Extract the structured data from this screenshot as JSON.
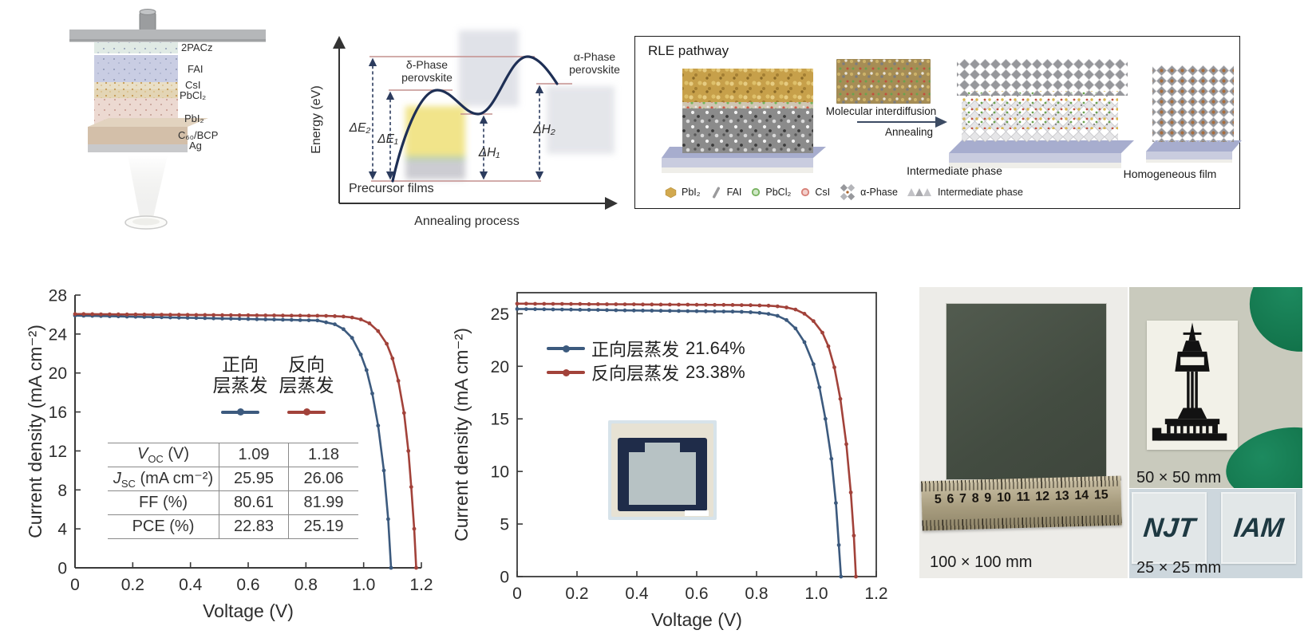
{
  "figure": {
    "background": "#ffffff"
  },
  "device": {
    "labels": [
      "2PACz",
      "FAI",
      "CsI",
      "PbCl₂",
      "PbI₂",
      "C₆₀/BCP",
      "Ag"
    ]
  },
  "energy": {
    "ylabel": "Energy (eV)",
    "xlabel": "Annealing process",
    "precursor": "Precursor films",
    "delta_phase_line1": "δ-Phase",
    "delta_phase_line2": "perovskite",
    "alpha_phase_line1": "α-Phase",
    "alpha_phase_line2": "perovskite",
    "dE2": "ΔE₂",
    "dE1": "ΔE₁",
    "dH1": "ΔH₁",
    "dH2": "ΔH₂"
  },
  "rle": {
    "title": "RLE pathway",
    "arrow_top": "Molecular interdiffusion",
    "arrow_bottom": "Annealing",
    "caption_intermediate": "Intermediate phase",
    "caption_homogeneous": "Homogeneous film",
    "legend": [
      {
        "label": "PbI₂",
        "icon": "hexagon",
        "color": "#d2a94f"
      },
      {
        "label": "FAI",
        "icon": "rod",
        "color": "#9a9a9c"
      },
      {
        "label": "PbCl₂",
        "icon": "circle",
        "color": "#78b260"
      },
      {
        "label": "CsI",
        "icon": "circle",
        "color": "#d77f76"
      },
      {
        "label": "α-Phase",
        "icon": "diamond-cluster",
        "color": "#97989c"
      },
      {
        "label": "Intermediate phase",
        "icon": "chevrons",
        "color": "#b9b9bd"
      }
    ]
  },
  "chart_data": {
    "left_jv": {
      "type": "line",
      "xlabel": "Voltage (V)",
      "ylabel": "Current density (mA cm⁻²)",
      "xlim": [
        0,
        1.2
      ],
      "ylim": [
        0,
        28
      ],
      "xtick_values": [
        0,
        0.2,
        0.4,
        0.6,
        0.8,
        1.0,
        1.2
      ],
      "xtick_labels": [
        "0",
        "0.2",
        "0.4",
        "0.6",
        "0.8",
        "1.0",
        "1.2"
      ],
      "ytick_values": [
        0,
        4,
        8,
        12,
        16,
        20,
        24,
        28
      ],
      "ytick_labels": [
        "0",
        "4",
        "8",
        "12",
        "16",
        "20",
        "24",
        "28"
      ],
      "grid": false,
      "legend_position": "inside-upper-middle",
      "series": [
        {
          "name": "正向层蒸发",
          "color": "#3c5a7e",
          "points": [
            [
              0,
              25.9
            ],
            [
              0.03,
              25.88
            ],
            [
              0.06,
              25.86
            ],
            [
              0.09,
              25.85
            ],
            [
              0.12,
              25.83
            ],
            [
              0.15,
              25.81
            ],
            [
              0.18,
              25.79
            ],
            [
              0.21,
              25.77
            ],
            [
              0.24,
              25.76
            ],
            [
              0.27,
              25.74
            ],
            [
              0.3,
              25.72
            ],
            [
              0.33,
              25.7
            ],
            [
              0.36,
              25.68
            ],
            [
              0.39,
              25.67
            ],
            [
              0.42,
              25.65
            ],
            [
              0.45,
              25.63
            ],
            [
              0.48,
              25.61
            ],
            [
              0.51,
              25.59
            ],
            [
              0.54,
              25.58
            ],
            [
              0.57,
              25.56
            ],
            [
              0.6,
              25.54
            ],
            [
              0.63,
              25.52
            ],
            [
              0.66,
              25.5
            ],
            [
              0.69,
              25.49
            ],
            [
              0.72,
              25.47
            ],
            [
              0.75,
              25.45
            ],
            [
              0.78,
              25.43
            ],
            [
              0.81,
              25.41
            ],
            [
              0.84,
              25.4
            ],
            [
              0.87,
              25.2
            ],
            [
              0.9,
              25.0
            ],
            [
              0.93,
              24.5
            ],
            [
              0.96,
              23.6
            ],
            [
              0.99,
              21.9
            ],
            [
              1.01,
              20.3
            ],
            [
              1.03,
              17.9
            ],
            [
              1.05,
              14.6
            ],
            [
              1.07,
              10.0
            ],
            [
              1.085,
              5.0
            ],
            [
              1.095,
              0
            ]
          ]
        },
        {
          "name": "反向层蒸发",
          "color": "#a2423a",
          "points": [
            [
              0,
              26.05
            ],
            [
              0.03,
              26.05
            ],
            [
              0.06,
              26.04
            ],
            [
              0.09,
              26.03
            ],
            [
              0.12,
              26.03
            ],
            [
              0.15,
              26.02
            ],
            [
              0.18,
              26.01
            ],
            [
              0.21,
              26.01
            ],
            [
              0.24,
              26.0
            ],
            [
              0.27,
              25.99
            ],
            [
              0.3,
              25.99
            ],
            [
              0.33,
              25.98
            ],
            [
              0.36,
              25.98
            ],
            [
              0.39,
              25.97
            ],
            [
              0.42,
              25.96
            ],
            [
              0.45,
              25.96
            ],
            [
              0.48,
              25.95
            ],
            [
              0.51,
              25.94
            ],
            [
              0.54,
              25.94
            ],
            [
              0.57,
              25.93
            ],
            [
              0.6,
              25.93
            ],
            [
              0.63,
              25.92
            ],
            [
              0.66,
              25.91
            ],
            [
              0.69,
              25.91
            ],
            [
              0.72,
              25.9
            ],
            [
              0.75,
              25.89
            ],
            [
              0.78,
              25.89
            ],
            [
              0.81,
              25.88
            ],
            [
              0.84,
              25.88
            ],
            [
              0.87,
              25.86
            ],
            [
              0.9,
              25.84
            ],
            [
              0.93,
              25.8
            ],
            [
              0.96,
              25.7
            ],
            [
              0.99,
              25.5
            ],
            [
              1.02,
              25.1
            ],
            [
              1.05,
              24.3
            ],
            [
              1.08,
              23.0
            ],
            [
              1.1,
              21.5
            ],
            [
              1.12,
              19.2
            ],
            [
              1.14,
              15.9
            ],
            [
              1.155,
              12.0
            ],
            [
              1.165,
              8.3
            ],
            [
              1.175,
              4.0
            ],
            [
              1.182,
              0
            ]
          ]
        }
      ],
      "table": {
        "rows": [
          {
            "p_main": "V",
            "p_sub": "OC",
            "p_rest": " (V)",
            "forward": "1.09",
            "reverse": "1.18"
          },
          {
            "p_main": "J",
            "p_sub": "SC",
            "p_rest": " (mA cm⁻²)",
            "forward": "25.95",
            "reverse": "26.06"
          },
          {
            "p_main": "FF (%)",
            "p_sub": "",
            "p_rest": "",
            "forward": "80.61",
            "reverse": "81.99"
          },
          {
            "p_main": "PCE (%)",
            "p_sub": "",
            "p_rest": "",
            "forward": "22.83",
            "reverse": "25.19"
          }
        ]
      },
      "legend": {
        "col1_line1": "正向",
        "col1_line2": "层蒸发",
        "col2_line1": "反向",
        "col2_line2": "层蒸发"
      }
    },
    "right_jv": {
      "type": "line",
      "xlabel": "Voltage (V)",
      "ylabel": "Current density (mA cm⁻²)",
      "xlim": [
        0,
        1.2
      ],
      "ylim": [
        0,
        27
      ],
      "xtick_values": [
        0,
        0.2,
        0.4,
        0.6,
        0.8,
        1.0,
        1.2
      ],
      "xtick_labels": [
        "0",
        "0.2",
        "0.4",
        "0.6",
        "0.8",
        "1.0",
        "1.2"
      ],
      "ytick_values": [
        0,
        5,
        10,
        15,
        20,
        25
      ],
      "ytick_labels": [
        "0",
        "5",
        "10",
        "15",
        "20",
        "25"
      ],
      "grid": false,
      "frame": "box",
      "legend_position": "inside-upper-left",
      "series": [
        {
          "name": "正向层蒸发",
          "pce": "21.64%",
          "color": "#3c5a7e",
          "points": [
            [
              0,
              25.45
            ],
            [
              0.03,
              25.44
            ],
            [
              0.06,
              25.43
            ],
            [
              0.09,
              25.42
            ],
            [
              0.12,
              25.41
            ],
            [
              0.15,
              25.4
            ],
            [
              0.18,
              25.39
            ],
            [
              0.21,
              25.38
            ],
            [
              0.24,
              25.37
            ],
            [
              0.27,
              25.36
            ],
            [
              0.3,
              25.35
            ],
            [
              0.33,
              25.33
            ],
            [
              0.36,
              25.32
            ],
            [
              0.39,
              25.31
            ],
            [
              0.42,
              25.3
            ],
            [
              0.45,
              25.29
            ],
            [
              0.48,
              25.28
            ],
            [
              0.51,
              25.27
            ],
            [
              0.54,
              25.26
            ],
            [
              0.57,
              25.25
            ],
            [
              0.6,
              25.24
            ],
            [
              0.63,
              25.23
            ],
            [
              0.66,
              25.22
            ],
            [
              0.69,
              25.21
            ],
            [
              0.72,
              25.2
            ],
            [
              0.75,
              25.18
            ],
            [
              0.78,
              25.14
            ],
            [
              0.81,
              25.08
            ],
            [
              0.84,
              24.98
            ],
            [
              0.87,
              24.8
            ],
            [
              0.9,
              24.4
            ],
            [
              0.93,
              23.6
            ],
            [
              0.96,
              22.3
            ],
            [
              0.99,
              20.2
            ],
            [
              1.01,
              18.0
            ],
            [
              1.03,
              15.0
            ],
            [
              1.05,
              11.2
            ],
            [
              1.065,
              7.0
            ],
            [
              1.075,
              3.0
            ],
            [
              1.082,
              0
            ]
          ]
        },
        {
          "name": "反向层蒸发",
          "pce": "23.38%",
          "color": "#a2423a",
          "points": [
            [
              0,
              25.95
            ],
            [
              0.03,
              25.95
            ],
            [
              0.06,
              25.94
            ],
            [
              0.09,
              25.94
            ],
            [
              0.12,
              25.93
            ],
            [
              0.15,
              25.93
            ],
            [
              0.18,
              25.92
            ],
            [
              0.21,
              25.92
            ],
            [
              0.24,
              25.91
            ],
            [
              0.27,
              25.91
            ],
            [
              0.3,
              25.9
            ],
            [
              0.33,
              25.9
            ],
            [
              0.36,
              25.89
            ],
            [
              0.39,
              25.89
            ],
            [
              0.42,
              25.88
            ],
            [
              0.45,
              25.88
            ],
            [
              0.48,
              25.87
            ],
            [
              0.51,
              25.87
            ],
            [
              0.54,
              25.86
            ],
            [
              0.57,
              25.86
            ],
            [
              0.6,
              25.85
            ],
            [
              0.63,
              25.85
            ],
            [
              0.66,
              25.84
            ],
            [
              0.69,
              25.84
            ],
            [
              0.72,
              25.83
            ],
            [
              0.75,
              25.82
            ],
            [
              0.78,
              25.81
            ],
            [
              0.81,
              25.79
            ],
            [
              0.84,
              25.76
            ],
            [
              0.87,
              25.7
            ],
            [
              0.9,
              25.6
            ],
            [
              0.93,
              25.4
            ],
            [
              0.96,
              25.0
            ],
            [
              0.99,
              24.3
            ],
            [
              1.02,
              23.2
            ],
            [
              1.04,
              21.9
            ],
            [
              1.06,
              19.9
            ],
            [
              1.08,
              16.9
            ],
            [
              1.1,
              12.6
            ],
            [
              1.115,
              8.0
            ],
            [
              1.125,
              3.9
            ],
            [
              1.132,
              0
            ]
          ]
        }
      ]
    }
  },
  "photos": {
    "label_large": "100 × 100 mm",
    "label_medium": "50 × 50 mm",
    "label_small": "25 × 25 mm",
    "ruler_numbers": [
      "5",
      "6",
      "7",
      "8",
      "9",
      "10",
      "11",
      "12",
      "13",
      "14",
      "15"
    ],
    "logo_left": "NJT",
    "logo_right": "IAM"
  }
}
